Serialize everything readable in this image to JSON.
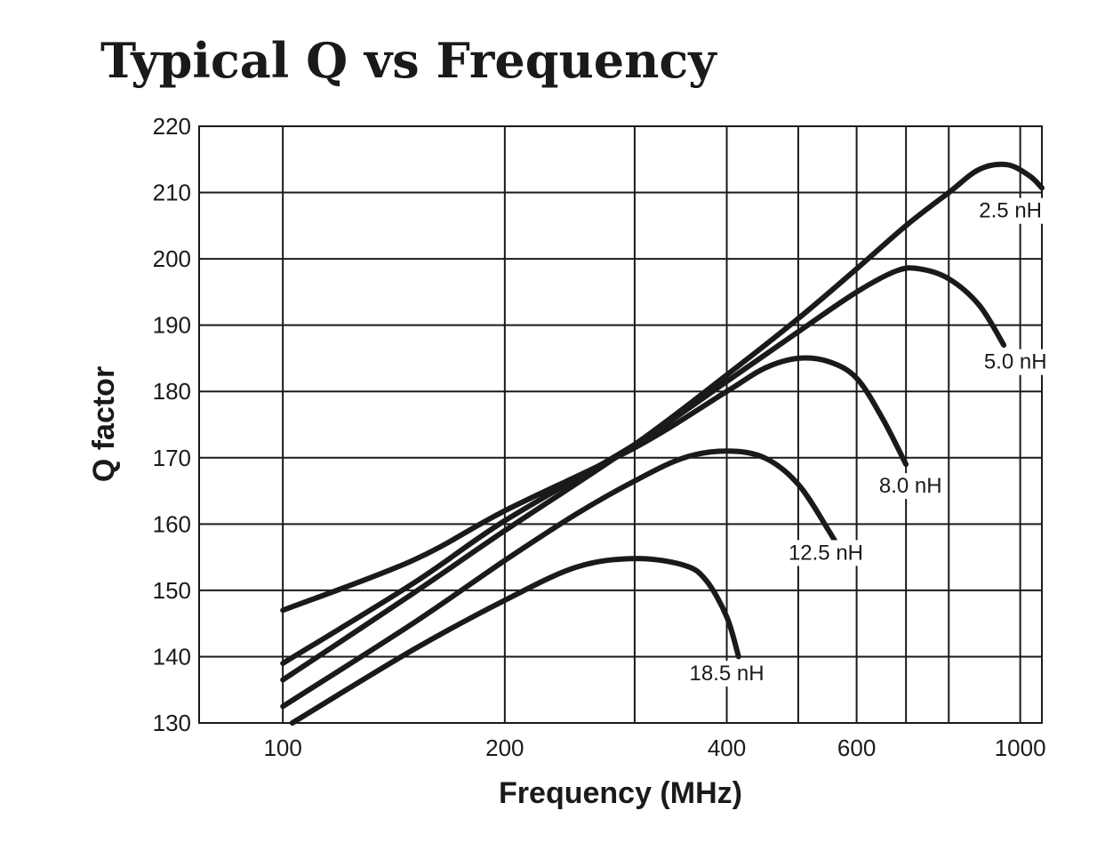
{
  "chart_data": {
    "type": "line",
    "title": "Typical Q vs Frequency",
    "xlabel": "Frequency (MHz)",
    "ylabel": "Q factor",
    "x_scale": "log",
    "xlim": [
      77,
      1070
    ],
    "ylim": [
      130,
      220
    ],
    "x_ticks": [
      100,
      200,
      400,
      600,
      1000
    ],
    "x_tick_labels": [
      "100",
      "200",
      "400",
      "600",
      "1000"
    ],
    "x_gridlines": [
      100,
      200,
      300,
      400,
      500,
      600,
      700,
      800,
      1000
    ],
    "y_ticks": [
      130,
      140,
      150,
      160,
      170,
      180,
      190,
      200,
      210,
      220
    ],
    "y_tick_labels": [
      "130",
      "140",
      "150",
      "160",
      "170",
      "180",
      "190",
      "200",
      "210",
      "220"
    ],
    "grid": true,
    "legend": "none",
    "series": [
      {
        "name": "2.5 nH",
        "points": [
          [
            100,
            136.5
          ],
          [
            150,
            149.5
          ],
          [
            200,
            159
          ],
          [
            300,
            172
          ],
          [
            400,
            182.5
          ],
          [
            500,
            191
          ],
          [
            600,
            198.5
          ],
          [
            700,
            205
          ],
          [
            800,
            210
          ],
          [
            880,
            213.5
          ],
          [
            960,
            214.2
          ],
          [
            1030,
            212.5
          ],
          [
            1070,
            210.7
          ]
        ]
      },
      {
        "name": "5.0 nH",
        "points": [
          [
            100,
            139
          ],
          [
            150,
            151
          ],
          [
            200,
            160.5
          ],
          [
            300,
            172
          ],
          [
            400,
            181.5
          ],
          [
            500,
            189
          ],
          [
            600,
            195
          ],
          [
            680,
            198.2
          ],
          [
            730,
            198.5
          ],
          [
            800,
            197
          ],
          [
            880,
            193
          ],
          [
            950,
            187
          ]
        ]
      },
      {
        "name": "8.0 nH",
        "points": [
          [
            100,
            147
          ],
          [
            150,
            154.5
          ],
          [
            200,
            162
          ],
          [
            300,
            171.5
          ],
          [
            400,
            180
          ],
          [
            450,
            183.5
          ],
          [
            500,
            185
          ],
          [
            550,
            184.5
          ],
          [
            600,
            182
          ],
          [
            650,
            176
          ],
          [
            700,
            169
          ]
        ]
      },
      {
        "name": "12.5 nH",
        "points": [
          [
            100,
            132.5
          ],
          [
            150,
            145
          ],
          [
            200,
            154.5
          ],
          [
            250,
            161.5
          ],
          [
            300,
            166.5
          ],
          [
            350,
            170
          ],
          [
            400,
            171
          ],
          [
            450,
            170
          ],
          [
            500,
            166
          ],
          [
            550,
            159
          ],
          [
            570,
            156
          ]
        ]
      },
      {
        "name": "18.5 nH",
        "points": [
          [
            103,
            130
          ],
          [
            150,
            141
          ],
          [
            200,
            148.5
          ],
          [
            250,
            153.5
          ],
          [
            300,
            154.8
          ],
          [
            350,
            153.8
          ],
          [
            375,
            151.5
          ],
          [
            400,
            146
          ],
          [
            415,
            140
          ]
        ]
      }
    ],
    "series_labels": [
      {
        "text": "2.5 nH",
        "x": 970,
        "y": 207.3
      },
      {
        "text": "5.0 nH",
        "x": 985,
        "y": 184.5
      },
      {
        "text": "8.0 nH",
        "x": 710,
        "y": 165.8
      },
      {
        "text": "12.5 nH",
        "x": 545,
        "y": 155.7
      },
      {
        "text": "18.5 nH",
        "x": 400,
        "y": 137.5
      }
    ]
  }
}
